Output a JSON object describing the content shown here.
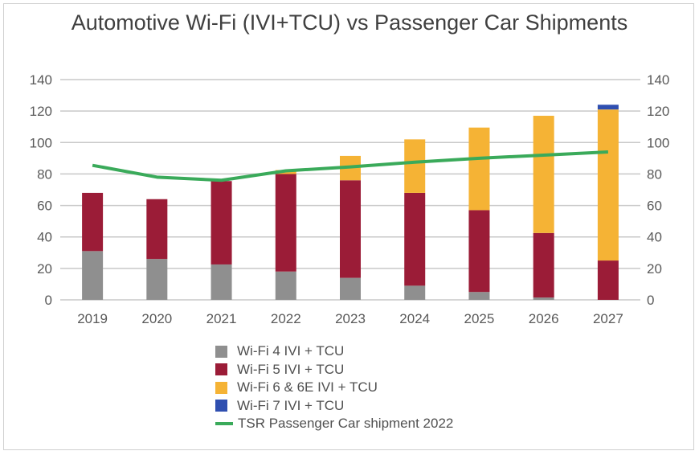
{
  "chart_data": {
    "type": "bar",
    "stacked": true,
    "title": "Automotive Wi-Fi (IVI+TCU) vs Passenger Car Shipments",
    "categories": [
      "2019",
      "2020",
      "2021",
      "2022",
      "2023",
      "2024",
      "2025",
      "2026",
      "2027"
    ],
    "ylim": [
      0,
      140
    ],
    "yticks": [
      0,
      20,
      40,
      60,
      80,
      100,
      120,
      140
    ],
    "ytick_labels": [
      "0",
      "20",
      "40",
      "60",
      "80",
      "100",
      "120",
      "140"
    ],
    "secondary_ylim": [
      0,
      140
    ],
    "grid": true,
    "legend_position": "bottom",
    "series": [
      {
        "name": "Wi-Fi 4 IVI + TCU",
        "type": "bar",
        "color": "#8f8f8f",
        "values": [
          31,
          26,
          22.5,
          18,
          14,
          9,
          5,
          1.5,
          0
        ]
      },
      {
        "name": "Wi-Fi 5 IVI + TCU",
        "type": "bar",
        "color": "#9b1c37",
        "values": [
          37,
          38,
          53,
          62,
          62,
          59,
          52,
          41,
          25
        ]
      },
      {
        "name": "Wi-Fi 6 & 6E IVI + TCU",
        "type": "bar",
        "color": "#f5b335",
        "values": [
          0,
          0,
          0,
          2.5,
          15.5,
          34,
          52.5,
          74.5,
          96
        ]
      },
      {
        "name": "Wi-Fi 7 IVI + TCU",
        "type": "bar",
        "color": "#2f4fb0",
        "values": [
          0,
          0,
          0,
          0,
          0,
          0,
          0,
          0,
          3
        ]
      },
      {
        "name": "TSR Passenger Car shipment 2022",
        "type": "line",
        "color": "#3aaa5a",
        "values": [
          85.5,
          78,
          76,
          82,
          84.5,
          87.5,
          90,
          92,
          94
        ]
      }
    ]
  }
}
